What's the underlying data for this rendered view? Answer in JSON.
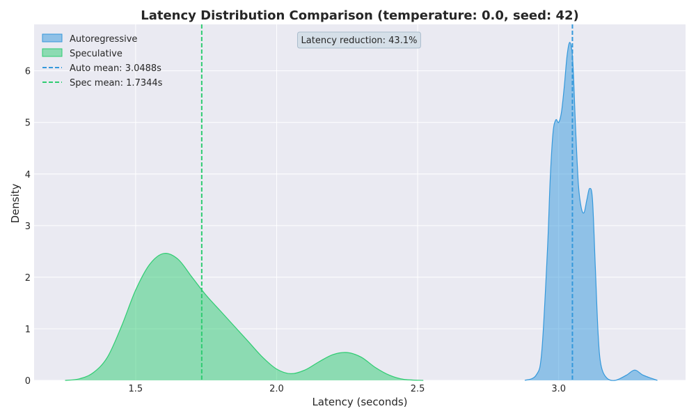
{
  "chart_data": {
    "type": "area",
    "title": "Latency Distribution Comparison (temperature: 0.0, seed: 42)",
    "xlabel": "Latency (seconds)",
    "ylabel": "Density",
    "xlim": [
      1.14,
      3.45
    ],
    "ylim": [
      0,
      6.9
    ],
    "x_ticks": [
      1.5,
      2.0,
      2.5,
      3.0
    ],
    "x_tick_labels": [
      "1.5",
      "2.0",
      "2.5",
      "3.0"
    ],
    "y_ticks": [
      0,
      1,
      2,
      3,
      4,
      5,
      6
    ],
    "y_tick_labels": [
      "0",
      "1",
      "2",
      "3",
      "4",
      "5",
      "6"
    ],
    "grid": true,
    "legend_position": "top-left",
    "series": [
      {
        "name": "Autoregressive",
        "color": "#3498db",
        "x": [
          2.88,
          2.92,
          2.94,
          2.96,
          2.97,
          2.98,
          2.99,
          3.0,
          3.01,
          3.02,
          3.03,
          3.04,
          3.05,
          3.06,
          3.07,
          3.08,
          3.09,
          3.1,
          3.11,
          3.12,
          3.13,
          3.14,
          3.15,
          3.17,
          3.2,
          3.24,
          3.27,
          3.3,
          3.35
        ],
        "y": [
          0.0,
          0.1,
          0.55,
          2.5,
          3.9,
          4.8,
          5.05,
          5.0,
          5.2,
          5.7,
          6.3,
          6.55,
          6.2,
          4.9,
          3.8,
          3.35,
          3.25,
          3.5,
          3.72,
          3.5,
          2.2,
          0.9,
          0.3,
          0.05,
          0.0,
          0.1,
          0.2,
          0.1,
          0.0
        ]
      },
      {
        "name": "Speculative",
        "color": "#2ecc71",
        "x": [
          1.25,
          1.3,
          1.35,
          1.4,
          1.45,
          1.5,
          1.55,
          1.6,
          1.65,
          1.7,
          1.75,
          1.8,
          1.85,
          1.9,
          1.95,
          2.0,
          2.05,
          2.1,
          2.15,
          2.2,
          2.25,
          2.3,
          2.35,
          2.4,
          2.45,
          2.52
        ],
        "y": [
          0.0,
          0.03,
          0.15,
          0.45,
          1.05,
          1.75,
          2.25,
          2.46,
          2.35,
          2.0,
          1.65,
          1.35,
          1.05,
          0.75,
          0.45,
          0.22,
          0.13,
          0.2,
          0.36,
          0.5,
          0.54,
          0.45,
          0.25,
          0.1,
          0.02,
          0.0
        ]
      }
    ],
    "mean_lines": [
      {
        "name": "Auto mean: 3.0488s",
        "x": 3.0488,
        "color": "#3498db"
      },
      {
        "name": "Spec mean: 1.7344s",
        "x": 1.7344,
        "color": "#2ecc71"
      }
    ],
    "annotation": "Latency reduction: 43.1%"
  }
}
